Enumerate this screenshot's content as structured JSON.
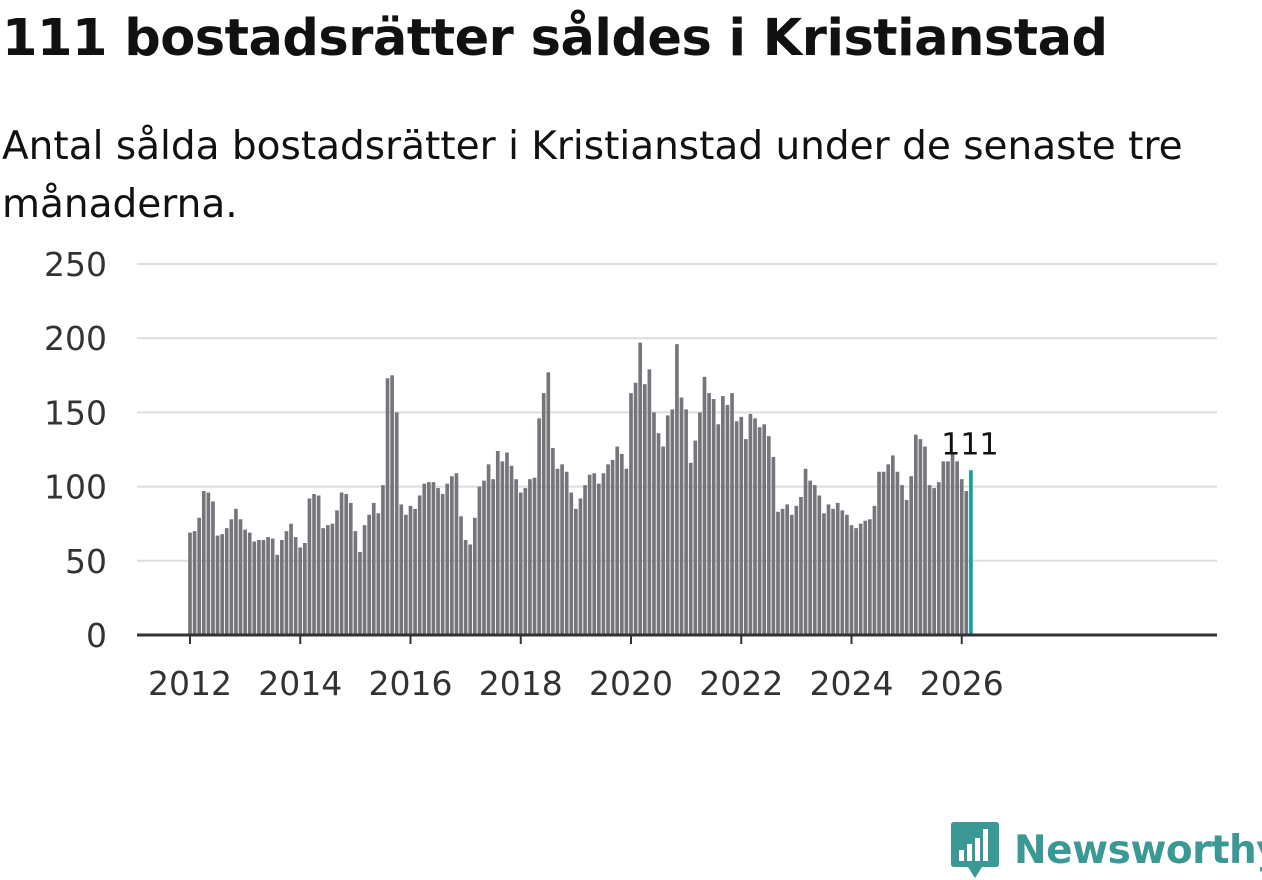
{
  "title": "111 bostadsrätter såldes i Kristianstad",
  "subtitle": "Antal sålda bostadsrätter i Kristianstad under de senaste tre månaderna.",
  "brand": {
    "name": "Newsworthy",
    "icon": "newsworthy-logo-icon",
    "color": "#3a9994"
  },
  "colors": {
    "bar": "#76757b",
    "highlight": "#1a9e96",
    "grid": "#dddddd",
    "axis": "#333333",
    "text": "#111111"
  },
  "chart_data": {
    "type": "bar",
    "title": "111 bostadsrätter såldes i Kristianstad",
    "subtitle": "Antal sålda bostadsrätter i Kristianstad under de senaste tre månaderna.",
    "xlabel": "",
    "ylabel": "",
    "ylim": [
      0,
      250
    ],
    "yticks": [
      0,
      50,
      100,
      150,
      200,
      250
    ],
    "xticks": [
      2012,
      2014,
      2016,
      2018,
      2020,
      2022,
      2024,
      2026
    ],
    "grid": true,
    "start": "2012-01",
    "frequency": "monthly",
    "values": [
      69,
      70,
      79,
      97,
      96,
      90,
      67,
      68,
      72,
      78,
      85,
      78,
      71,
      69,
      63,
      64,
      64,
      66,
      65,
      54,
      64,
      70,
      75,
      66,
      59,
      62,
      92,
      95,
      94,
      72,
      74,
      75,
      84,
      96,
      95,
      89,
      70,
      56,
      74,
      81,
      89,
      82,
      101,
      173,
      175,
      150,
      88,
      81,
      87,
      85,
      94,
      102,
      103,
      103,
      99,
      95,
      102,
      107,
      109,
      80,
      64,
      61,
      79,
      100,
      104,
      115,
      105,
      124,
      117,
      123,
      114,
      105,
      96,
      99,
      105,
      106,
      146,
      163,
      177,
      126,
      112,
      115,
      110,
      96,
      85,
      92,
      101,
      108,
      109,
      102,
      109,
      115,
      118,
      127,
      122,
      112,
      163,
      170,
      197,
      169,
      179,
      150,
      136,
      127,
      148,
      152,
      196,
      160,
      152,
      116,
      131,
      150,
      174,
      163,
      159,
      142,
      161,
      155,
      163,
      144,
      147,
      132,
      149,
      146,
      140,
      142,
      134,
      120,
      83,
      85,
      88,
      81,
      87,
      93,
      112,
      104,
      101,
      94,
      82,
      88,
      85,
      89,
      84,
      81,
      74,
      72,
      75,
      77,
      78,
      87,
      110,
      110,
      115,
      121,
      110,
      101,
      91,
      107,
      135,
      132,
      127,
      101,
      99,
      103,
      117,
      117,
      122,
      117,
      105,
      97,
      111
    ],
    "highlight": {
      "index": 170,
      "value": 111,
      "label": "111"
    }
  }
}
